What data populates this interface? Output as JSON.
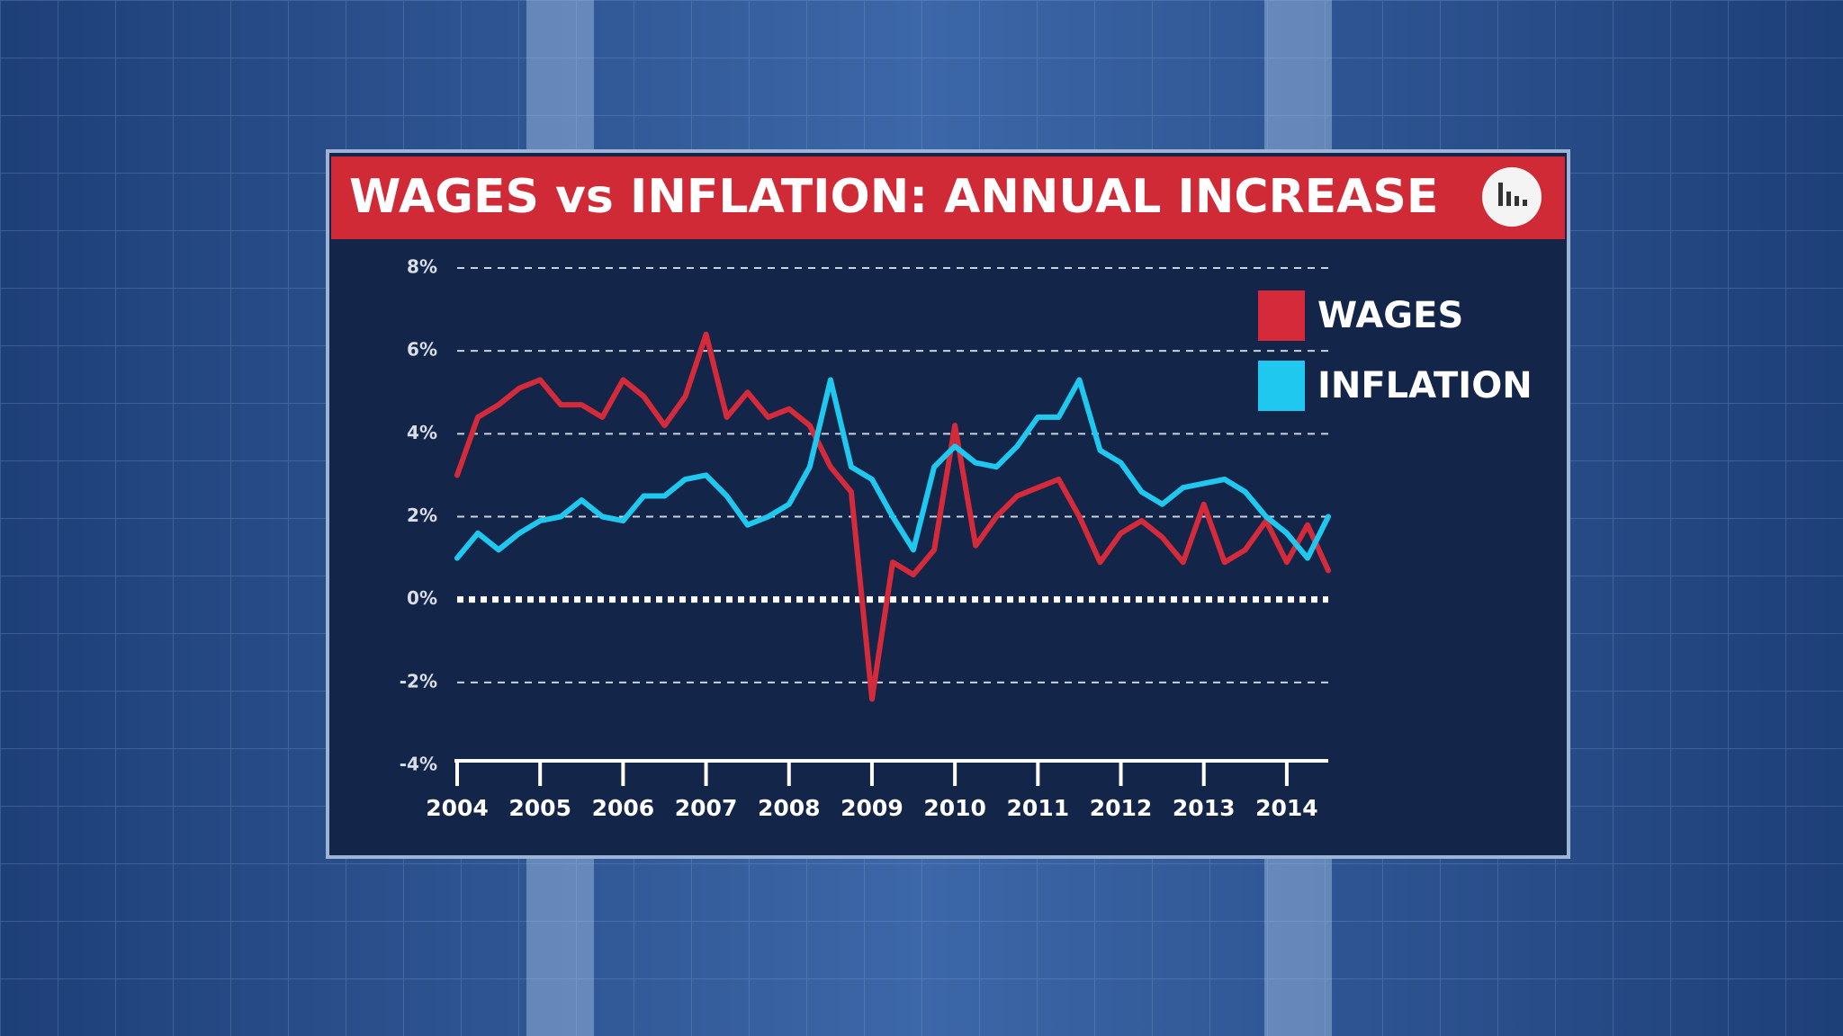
{
  "chart_data": {
    "type": "line",
    "title": "WAGES vs INFLATION: ANNUAL INCREASE",
    "x": [
      2004,
      2004.25,
      2004.5,
      2004.75,
      2005,
      2005.25,
      2005.5,
      2005.75,
      2006,
      2006.25,
      2006.5,
      2006.75,
      2007,
      2007.25,
      2007.5,
      2007.75,
      2008,
      2008.25,
      2008.5,
      2008.75,
      2009,
      2009.25,
      2009.5,
      2009.75,
      2010,
      2010.25,
      2010.5,
      2010.75,
      2011,
      2011.25,
      2011.5,
      2011.75,
      2012,
      2012.25,
      2012.5,
      2012.75,
      2013,
      2013.25,
      2013.5,
      2013.75,
      2014,
      2014.25,
      2014.5
    ],
    "series": [
      {
        "name": "WAGES",
        "color": "#d42a3a",
        "values": [
          3.0,
          4.4,
          4.7,
          5.1,
          5.3,
          4.7,
          4.7,
          4.4,
          5.3,
          4.9,
          4.2,
          4.9,
          6.4,
          4.4,
          5.0,
          4.4,
          4.6,
          4.2,
          3.2,
          2.6,
          -2.4,
          0.9,
          0.6,
          1.2,
          4.2,
          1.3,
          2.0,
          2.5,
          2.7,
          2.9,
          2.0,
          0.9,
          1.6,
          1.9,
          1.5,
          0.9,
          2.3,
          0.9,
          1.2,
          1.9,
          0.9,
          1.8,
          0.7
        ]
      },
      {
        "name": "INFLATION",
        "color": "#1ec8ee",
        "values": [
          1.0,
          1.6,
          1.2,
          1.6,
          1.9,
          2.0,
          2.4,
          2.0,
          1.9,
          2.5,
          2.5,
          2.9,
          3.0,
          2.5,
          1.8,
          2.0,
          2.3,
          3.2,
          5.3,
          3.2,
          2.9,
          2.0,
          1.2,
          3.2,
          3.7,
          3.3,
          3.2,
          3.7,
          4.4,
          4.4,
          5.3,
          3.6,
          3.3,
          2.6,
          2.3,
          2.7,
          2.8,
          2.9,
          2.6,
          2.0,
          1.6,
          1.0,
          2.0
        ]
      }
    ],
    "xlim": [
      2004,
      2014.5
    ],
    "xticks": [
      2004,
      2005,
      2006,
      2007,
      2008,
      2009,
      2010,
      2011,
      2012,
      2013,
      2014
    ],
    "ylim": [
      -4,
      8
    ],
    "yticks": [
      {
        "value": -4,
        "label": "-4%"
      },
      {
        "value": -2,
        "label": "-2%"
      },
      {
        "value": 0,
        "label": "0%"
      },
      {
        "value": 2,
        "label": "2%"
      },
      {
        "value": 4,
        "label": "4%"
      },
      {
        "value": 6,
        "label": "6%"
      },
      {
        "value": 8,
        "label": "8%"
      }
    ],
    "grid": true,
    "legend": "top-right"
  }
}
